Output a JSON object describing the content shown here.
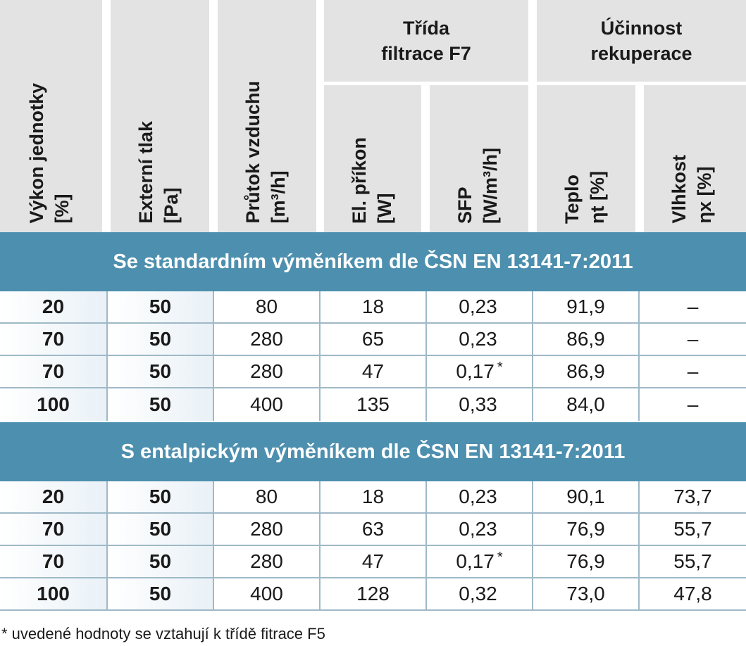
{
  "header": {
    "col_power": {
      "line1": "Výkon jednotky",
      "line2": "[%]"
    },
    "col_pressure": {
      "line1": "Externí tlak",
      "line2": "[Pa]"
    },
    "col_airflow": {
      "line1": "Průtok vzduchu",
      "line2": "[m³/h]"
    },
    "group_filter": {
      "line1": "Třída",
      "line2": "filtrace F7"
    },
    "col_power_input": {
      "line1": "El. příkon",
      "line2": "[W]"
    },
    "col_sfp": {
      "line1": "SFP",
      "line2": "[W/m³/h]"
    },
    "group_efficiency": {
      "line1": "Účinnost",
      "line2": "rekuperace"
    },
    "col_heat": {
      "line1": "Teplo",
      "line2": "ηt [%]"
    },
    "col_humidity": {
      "line1": "Vlhkost",
      "line2": "ηx [%]"
    }
  },
  "sections": [
    {
      "title": "Se standardním výměníkem dle ČSN EN 13141-7:2011",
      "rows": [
        {
          "power": "20",
          "pressure": "50",
          "airflow": "80",
          "input": "18",
          "sfp": "0,23",
          "sfp_star": "",
          "heat": "91,9",
          "humidity": "–"
        },
        {
          "power": "70",
          "pressure": "50",
          "airflow": "280",
          "input": "65",
          "sfp": "0,23",
          "sfp_star": "",
          "heat": "86,9",
          "humidity": "–"
        },
        {
          "power": "70",
          "pressure": "50",
          "airflow": "280",
          "input": "47",
          "sfp": "0,17",
          "sfp_star": "*",
          "heat": "86,9",
          "humidity": "–"
        },
        {
          "power": "100",
          "pressure": "50",
          "airflow": "400",
          "input": "135",
          "sfp": "0,33",
          "sfp_star": "",
          "heat": "84,0",
          "humidity": "–"
        }
      ]
    },
    {
      "title": "S entalpickým výměníkem dle ČSN EN 13141-7:2011",
      "rows": [
        {
          "power": "20",
          "pressure": "50",
          "airflow": "80",
          "input": "18",
          "sfp": "0,23",
          "sfp_star": "",
          "heat": "90,1",
          "humidity": "73,7"
        },
        {
          "power": "70",
          "pressure": "50",
          "airflow": "280",
          "input": "63",
          "sfp": "0,23",
          "sfp_star": "",
          "heat": "76,9",
          "humidity": "55,7"
        },
        {
          "power": "70",
          "pressure": "50",
          "airflow": "280",
          "input": "47",
          "sfp": "0,17",
          "sfp_star": "*",
          "heat": "76,9",
          "humidity": "55,7"
        },
        {
          "power": "100",
          "pressure": "50",
          "airflow": "400",
          "input": "128",
          "sfp": "0,32",
          "sfp_star": "",
          "heat": "73,0",
          "humidity": "47,8"
        }
      ]
    }
  ],
  "footnote": "* uvedené hodnoty se vztahují k třídě fitrace F5",
  "colors": {
    "header_bg": "#e3e3e3",
    "section_bg": "#4d8fae",
    "grid_line": "#9fb9c7"
  }
}
